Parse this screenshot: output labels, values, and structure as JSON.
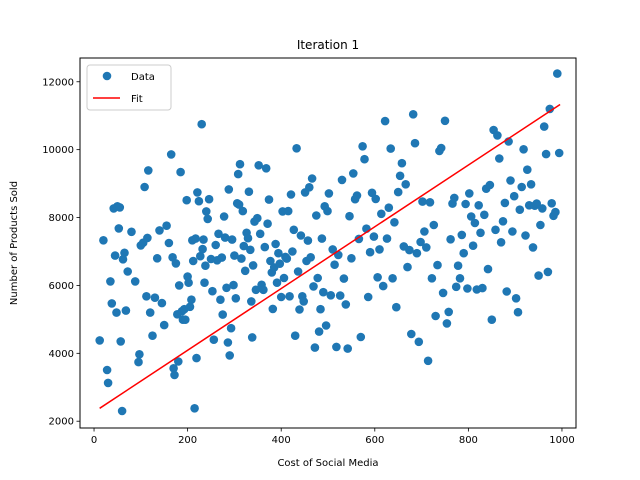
{
  "chart_data": {
    "type": "scatter",
    "title": "Iteration 1",
    "xlabel": "Cost of Social Media",
    "ylabel": "Number of Products Sold",
    "xlim": [
      -30,
      1030
    ],
    "ylim": [
      1800,
      12700
    ],
    "xticks": [
      0,
      200,
      400,
      600,
      800,
      1000
    ],
    "yticks": [
      2000,
      4000,
      6000,
      8000,
      10000,
      12000
    ],
    "legend_position": "top-left",
    "grid": false,
    "colors": {
      "data": "#1f77b4",
      "fit": "#ff0000"
    },
    "series": [
      {
        "name": "Data",
        "kind": "scatter",
        "points": [
          [
            12,
            4380
          ],
          [
            20,
            7330
          ],
          [
            28,
            3510
          ],
          [
            30,
            3130
          ],
          [
            35,
            6120
          ],
          [
            38,
            5470
          ],
          [
            42,
            8270
          ],
          [
            45,
            6880
          ],
          [
            48,
            5200
          ],
          [
            50,
            8330
          ],
          [
            53,
            7680
          ],
          [
            55,
            8300
          ],
          [
            57,
            4350
          ],
          [
            60,
            2300
          ],
          [
            62,
            6770
          ],
          [
            65,
            6960
          ],
          [
            68,
            5260
          ],
          [
            72,
            6410
          ],
          [
            80,
            7580
          ],
          [
            88,
            6120
          ],
          [
            95,
            3740
          ],
          [
            97,
            3970
          ],
          [
            100,
            7180
          ],
          [
            105,
            7260
          ],
          [
            108,
            8900
          ],
          [
            112,
            5680
          ],
          [
            114,
            7400
          ],
          [
            116,
            9390
          ],
          [
            120,
            5200
          ],
          [
            125,
            4520
          ],
          [
            130,
            5640
          ],
          [
            135,
            6800
          ],
          [
            140,
            7620
          ],
          [
            145,
            5480
          ],
          [
            150,
            4830
          ],
          [
            155,
            7760
          ],
          [
            160,
            7250
          ],
          [
            165,
            9860
          ],
          [
            168,
            6830
          ],
          [
            170,
            3560
          ],
          [
            172,
            3360
          ],
          [
            175,
            6650
          ],
          [
            178,
            5150
          ],
          [
            180,
            3760
          ],
          [
            182,
            6000
          ],
          [
            185,
            9340
          ],
          [
            188,
            5240
          ],
          [
            190,
            4990
          ],
          [
            193,
            5300
          ],
          [
            195,
            4990
          ],
          [
            198,
            8510
          ],
          [
            200,
            6260
          ],
          [
            202,
            6080
          ],
          [
            205,
            5370
          ],
          [
            208,
            5580
          ],
          [
            210,
            7330
          ],
          [
            212,
            6720
          ],
          [
            215,
            2380
          ],
          [
            217,
            7380
          ],
          [
            219,
            3860
          ],
          [
            221,
            8740
          ],
          [
            224,
            8480
          ],
          [
            227,
            6860
          ],
          [
            230,
            10750
          ],
          [
            232,
            7070
          ],
          [
            234,
            7350
          ],
          [
            236,
            6080
          ],
          [
            238,
            6580
          ],
          [
            240,
            8180
          ],
          [
            243,
            7960
          ],
          [
            246,
            8540
          ],
          [
            250,
            6780
          ],
          [
            253,
            5830
          ],
          [
            256,
            4400
          ],
          [
            260,
            7190
          ],
          [
            263,
            6740
          ],
          [
            266,
            7520
          ],
          [
            270,
            5580
          ],
          [
            273,
            6820
          ],
          [
            275,
            5140
          ],
          [
            278,
            8030
          ],
          [
            280,
            7410
          ],
          [
            283,
            5930
          ],
          [
            286,
            4320
          ],
          [
            288,
            8830
          ],
          [
            290,
            3940
          ],
          [
            293,
            4740
          ],
          [
            295,
            7350
          ],
          [
            298,
            6010
          ],
          [
            300,
            6880
          ],
          [
            303,
            5620
          ],
          [
            306,
            8420
          ],
          [
            308,
            9280
          ],
          [
            310,
            8380
          ],
          [
            312,
            9570
          ],
          [
            315,
            6790
          ],
          [
            318,
            8190
          ],
          [
            320,
            7160
          ],
          [
            323,
            6430
          ],
          [
            326,
            7550
          ],
          [
            329,
            7390
          ],
          [
            331,
            8760
          ],
          [
            334,
            7050
          ],
          [
            336,
            5530
          ],
          [
            338,
            4470
          ],
          [
            340,
            6590
          ],
          [
            343,
            7880
          ],
          [
            346,
            5870
          ],
          [
            349,
            7980
          ],
          [
            352,
            9540
          ],
          [
            355,
            7520
          ],
          [
            358,
            6020
          ],
          [
            362,
            5870
          ],
          [
            365,
            7130
          ],
          [
            368,
            9450
          ],
          [
            371,
            7820
          ],
          [
            374,
            8530
          ],
          [
            377,
            6720
          ],
          [
            380,
            6380
          ],
          [
            382,
            5310
          ],
          [
            385,
            6530
          ],
          [
            388,
            7220
          ],
          [
            391,
            6080
          ],
          [
            394,
            6950
          ],
          [
            397,
            6640
          ],
          [
            400,
            5660
          ],
          [
            403,
            8180
          ],
          [
            406,
            6220
          ],
          [
            409,
            6840
          ],
          [
            412,
            6790
          ],
          [
            415,
            8190
          ],
          [
            418,
            5680
          ],
          [
            421,
            8680
          ],
          [
            424,
            7000
          ],
          [
            427,
            7640
          ],
          [
            430,
            4520
          ],
          [
            433,
            10040
          ],
          [
            436,
            6410
          ],
          [
            439,
            5290
          ],
          [
            442,
            7470
          ],
          [
            445,
            5680
          ],
          [
            448,
            5530
          ],
          [
            451,
            8740
          ],
          [
            454,
            6720
          ],
          [
            457,
            7320
          ],
          [
            460,
            8890
          ],
          [
            463,
            6830
          ],
          [
            466,
            9150
          ],
          [
            469,
            5970
          ],
          [
            472,
            4170
          ],
          [
            475,
            8060
          ],
          [
            478,
            6220
          ],
          [
            481,
            4640
          ],
          [
            484,
            5300
          ],
          [
            487,
            7380
          ],
          [
            490,
            5800
          ],
          [
            493,
            8330
          ],
          [
            496,
            4820
          ],
          [
            499,
            8190
          ],
          [
            502,
            8710
          ],
          [
            506,
            5710
          ],
          [
            510,
            7060
          ],
          [
            514,
            6610
          ],
          [
            518,
            4190
          ],
          [
            522,
            6900
          ],
          [
            526,
            5700
          ],
          [
            530,
            9110
          ],
          [
            534,
            6200
          ],
          [
            538,
            5440
          ],
          [
            542,
            4140
          ],
          [
            546,
            8040
          ],
          [
            550,
            6800
          ],
          [
            554,
            9300
          ],
          [
            558,
            8540
          ],
          [
            562,
            8650
          ],
          [
            566,
            7370
          ],
          [
            570,
            4480
          ],
          [
            574,
            10100
          ],
          [
            578,
            9720
          ],
          [
            582,
            7670
          ],
          [
            586,
            5660
          ],
          [
            590,
            6980
          ],
          [
            594,
            8730
          ],
          [
            598,
            7440
          ],
          [
            602,
            8550
          ],
          [
            606,
            6240
          ],
          [
            610,
            7060
          ],
          [
            614,
            8110
          ],
          [
            618,
            5980
          ],
          [
            622,
            10840
          ],
          [
            626,
            7380
          ],
          [
            630,
            8290
          ],
          [
            634,
            10030
          ],
          [
            638,
            6210
          ],
          [
            642,
            7860
          ],
          [
            646,
            5360
          ],
          [
            650,
            8750
          ],
          [
            654,
            9230
          ],
          [
            658,
            9600
          ],
          [
            662,
            7150
          ],
          [
            666,
            8980
          ],
          [
            670,
            6540
          ],
          [
            674,
            7040
          ],
          [
            678,
            4570
          ],
          [
            682,
            11040
          ],
          [
            686,
            10190
          ],
          [
            690,
            6950
          ],
          [
            694,
            4340
          ],
          [
            698,
            7280
          ],
          [
            702,
            8470
          ],
          [
            706,
            7590
          ],
          [
            710,
            7120
          ],
          [
            714,
            3780
          ],
          [
            718,
            8450
          ],
          [
            722,
            6210
          ],
          [
            726,
            7780
          ],
          [
            730,
            5100
          ],
          [
            734,
            6600
          ],
          [
            738,
            9960
          ],
          [
            742,
            10050
          ],
          [
            746,
            5780
          ],
          [
            750,
            10850
          ],
          [
            754,
            4880
          ],
          [
            758,
            5220
          ],
          [
            762,
            7360
          ],
          [
            766,
            8410
          ],
          [
            770,
            8580
          ],
          [
            774,
            5960
          ],
          [
            778,
            6580
          ],
          [
            782,
            6210
          ],
          [
            786,
            7490
          ],
          [
            790,
            6950
          ],
          [
            794,
            8400
          ],
          [
            798,
            5910
          ],
          [
            802,
            8710
          ],
          [
            806,
            8030
          ],
          [
            810,
            7170
          ],
          [
            814,
            7840
          ],
          [
            818,
            5880
          ],
          [
            822,
            8360
          ],
          [
            826,
            7550
          ],
          [
            830,
            5920
          ],
          [
            834,
            8080
          ],
          [
            838,
            8850
          ],
          [
            842,
            6480
          ],
          [
            846,
            8960
          ],
          [
            850,
            4990
          ],
          [
            854,
            10580
          ],
          [
            858,
            7640
          ],
          [
            862,
            10420
          ],
          [
            866,
            9740
          ],
          [
            870,
            7270
          ],
          [
            874,
            7890
          ],
          [
            878,
            8430
          ],
          [
            882,
            5820
          ],
          [
            886,
            10240
          ],
          [
            890,
            9090
          ],
          [
            894,
            7590
          ],
          [
            898,
            8630
          ],
          [
            902,
            5620
          ],
          [
            906,
            5210
          ],
          [
            910,
            8230
          ],
          [
            914,
            8900
          ],
          [
            918,
            10010
          ],
          [
            922,
            7470
          ],
          [
            926,
            9410
          ],
          [
            930,
            8360
          ],
          [
            934,
            8980
          ],
          [
            938,
            7120
          ],
          [
            942,
            8350
          ],
          [
            946,
            8410
          ],
          [
            950,
            6290
          ],
          [
            954,
            7780
          ],
          [
            958,
            8270
          ],
          [
            962,
            10680
          ],
          [
            966,
            9870
          ],
          [
            970,
            6400
          ],
          [
            974,
            11200
          ],
          [
            978,
            8420
          ],
          [
            982,
            8050
          ],
          [
            986,
            8160
          ],
          [
            990,
            12240
          ],
          [
            994,
            9900
          ]
        ]
      },
      {
        "name": "Fit",
        "kind": "line",
        "x": [
          12,
          996
        ],
        "y": [
          2380,
          11330
        ]
      }
    ]
  }
}
